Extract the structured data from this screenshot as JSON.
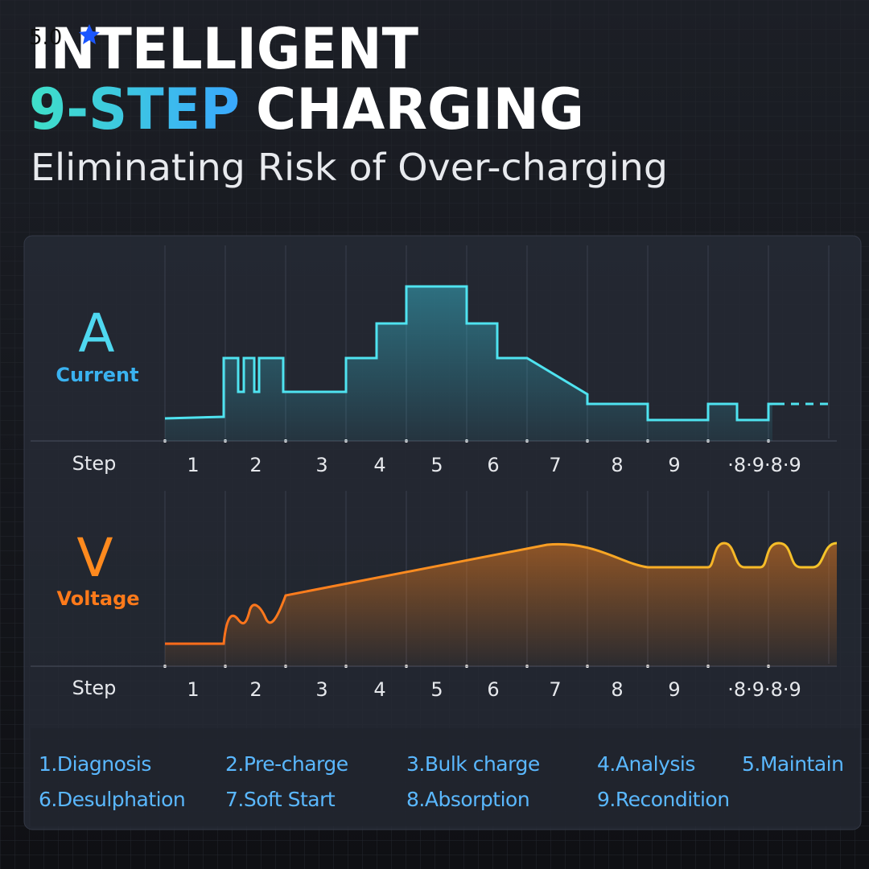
{
  "rating": "5.0",
  "header": {
    "title_line1": "INTELLIGENT",
    "title_highlight": "9-STEP",
    "title_rest": "CHARGING",
    "subtitle": "Eliminating Risk of Over-charging"
  },
  "current": {
    "symbol": "A",
    "label": "Current"
  },
  "voltage": {
    "symbol": "V",
    "label": "Voltage"
  },
  "step_label": "Step",
  "steps": [
    "1",
    "2",
    "3",
    "4",
    "5",
    "6",
    "7",
    "8",
    "9",
    "·8·9·8·9"
  ],
  "legend": [
    "1.Diagnosis",
    "2.Pre-charge",
    "3.Bulk charge",
    "4.Analysis",
    "5.Maintain",
    "6.Desulphation",
    "7.Soft Start",
    "8.Absorption",
    "9.Recondition"
  ]
}
